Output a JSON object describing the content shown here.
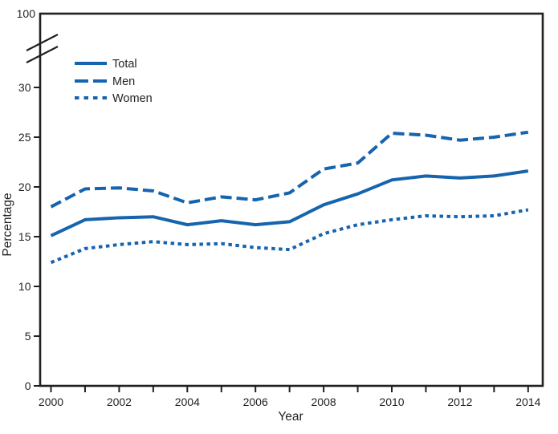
{
  "figure": {
    "background": "#ffffff",
    "line_color": "#1564ad",
    "axis_color": "#231f20",
    "text_color": "#231f20"
  },
  "chart_data": {
    "type": "line",
    "title": "",
    "xlabel": "Year",
    "ylabel": "Percentage",
    "x": [
      2000,
      2001,
      2002,
      2003,
      2004,
      2005,
      2006,
      2007,
      2008,
      2009,
      2010,
      2011,
      2012,
      2013,
      2014
    ],
    "x_tick_label_years": [
      2000,
      2002,
      2004,
      2006,
      2008,
      2010,
      2012,
      2014
    ],
    "y_ticks": [
      0,
      5,
      10,
      15,
      20,
      25,
      30
    ],
    "y_axis_break_label": "100",
    "ylim_displayed": [
      0,
      30
    ],
    "y_axis_break": true,
    "grid": false,
    "legend_position": "top-left",
    "series": [
      {
        "name": "Total",
        "line_style": "solid",
        "values": [
          15.1,
          16.7,
          16.9,
          17.0,
          16.2,
          16.6,
          16.2,
          16.5,
          18.2,
          19.3,
          20.7,
          21.1,
          20.9,
          21.1,
          21.6
        ]
      },
      {
        "name": "Men",
        "line_style": "dashed",
        "values": [
          18.0,
          19.8,
          19.9,
          19.6,
          18.4,
          19.0,
          18.7,
          19.4,
          21.8,
          22.4,
          25.4,
          25.2,
          24.7,
          25.0,
          25.5
        ]
      },
      {
        "name": "Women",
        "line_style": "dotted",
        "values": [
          12.4,
          13.8,
          14.2,
          14.5,
          14.2,
          14.3,
          13.9,
          13.7,
          15.3,
          16.2,
          16.7,
          17.1,
          17.0,
          17.1,
          17.7
        ]
      }
    ]
  }
}
